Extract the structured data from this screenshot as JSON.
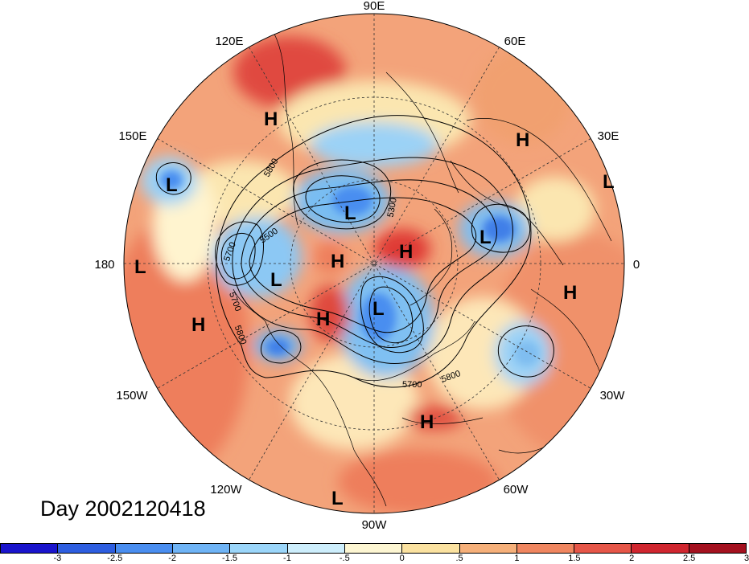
{
  "title": "Day 2002120418",
  "longitude_labels": {
    "lon_90e": "90E",
    "lon_120e": "120E",
    "lon_60e": "60E",
    "lon_150e": "150E",
    "lon_30e": "30E",
    "lon_180": "180",
    "lon_0": "0",
    "lon_150w": "150W",
    "lon_30w": "30W",
    "lon_120w": "120W",
    "lon_60w": "60W",
    "lon_90w": "90W"
  },
  "pressure_centers": {
    "h1": "H",
    "h2": "H",
    "h3": "H",
    "h4": "H",
    "h5": "H",
    "h6": "H",
    "h7": "H",
    "h8": "H",
    "l1": "L",
    "l2": "L",
    "l3": "L",
    "l4": "L",
    "l5": "L",
    "l6": "L",
    "l7": "L",
    "l8": "L"
  },
  "contour_labels": {
    "c5800_a": "5800",
    "c5500": "5500",
    "c5700_a": "5700",
    "c5700_b": "5700",
    "c5800_b": "5800",
    "c5300": "5300",
    "c5700_c": "5700",
    "c5800_c": "5800"
  },
  "colorbar": {
    "colors": [
      "#1a14cc",
      "#2e5ee0",
      "#4a8ef0",
      "#6fb4f6",
      "#9bd6fa",
      "#cdeefc",
      "#fdf6d2",
      "#fbe2a0",
      "#f6b07a",
      "#f08660",
      "#e65648",
      "#d0262f",
      "#a4111f"
    ],
    "labels": [
      "-3",
      "-2.5",
      "-2",
      "-1.5",
      "-1",
      "-.5",
      "0",
      ".5",
      "1",
      "1.5",
      "2",
      "2.5",
      "3"
    ]
  }
}
